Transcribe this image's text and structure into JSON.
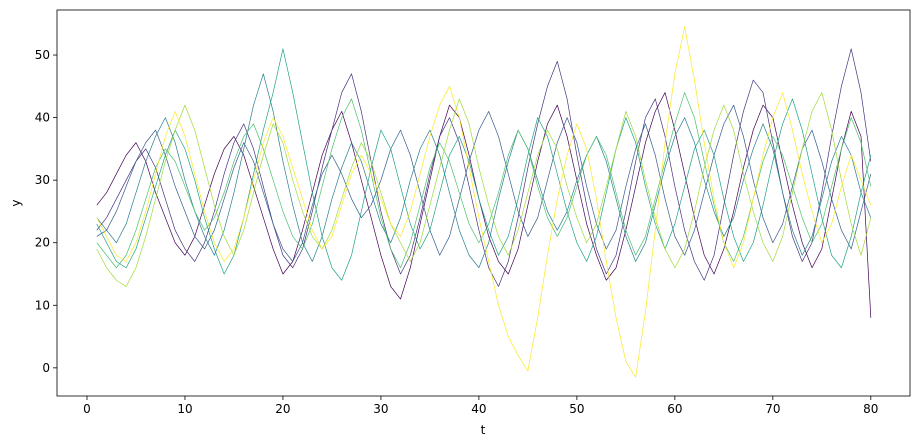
{
  "chart_data": {
    "type": "line",
    "xlabel": "t",
    "ylabel": "y",
    "x": [
      1,
      2,
      3,
      4,
      5,
      6,
      7,
      8,
      9,
      10,
      11,
      12,
      13,
      14,
      15,
      16,
      17,
      18,
      19,
      20,
      21,
      22,
      23,
      24,
      25,
      26,
      27,
      28,
      29,
      30,
      31,
      32,
      33,
      34,
      35,
      36,
      37,
      38,
      39,
      40,
      41,
      42,
      43,
      44,
      45,
      46,
      47,
      48,
      49,
      50,
      51,
      52,
      53,
      54,
      55,
      56,
      57,
      58,
      59,
      60,
      61,
      62,
      63,
      64,
      65,
      66,
      67,
      68,
      69,
      70,
      71,
      72,
      73,
      74,
      75,
      76,
      77,
      78,
      79,
      80
    ],
    "xlim": [
      -3.06,
      84
    ],
    "xticks": [
      0,
      10,
      20,
      30,
      40,
      50,
      60,
      70,
      80
    ],
    "ylim": [
      -4.5,
      57.2
    ],
    "yticks": [
      0,
      10,
      20,
      30,
      40,
      50
    ],
    "series": [
      {
        "color": "#440154",
        "values": [
          26,
          28,
          31,
          34,
          36,
          33,
          28,
          24,
          20,
          18,
          21,
          26,
          31,
          35,
          37,
          34,
          29,
          24,
          19,
          15,
          17,
          22,
          28,
          34,
          38,
          41,
          36,
          30,
          24,
          18,
          13,
          11,
          16,
          23,
          30,
          37,
          42,
          40,
          34,
          27,
          21,
          17,
          15,
          19,
          26,
          33,
          39,
          42,
          37,
          30,
          23,
          18,
          14,
          16,
          22,
          29,
          36,
          41,
          44,
          38,
          31,
          24,
          18,
          15,
          19,
          25,
          32,
          38,
          42,
          40,
          33,
          26,
          20,
          16,
          19,
          27,
          35,
          41,
          37,
          8
        ]
      },
      {
        "color": "#46327e",
        "values": [
          22,
          24,
          27,
          30,
          33,
          35,
          32,
          27,
          22,
          19,
          17,
          20,
          25,
          31,
          36,
          39,
          35,
          29,
          23,
          18,
          16,
          19,
          25,
          32,
          38,
          44,
          47,
          41,
          33,
          25,
          19,
          15,
          18,
          24,
          31,
          37,
          40,
          36,
          29,
          22,
          16,
          13,
          17,
          24,
          32,
          39,
          45,
          49,
          43,
          34,
          26,
          19,
          15,
          18,
          25,
          33,
          40,
          43,
          37,
          29,
          22,
          17,
          14,
          18,
          26,
          34,
          41,
          46,
          44,
          36,
          28,
          21,
          17,
          20,
          28,
          37,
          45,
          51,
          44,
          33
        ]
      },
      {
        "color": "#365c8d",
        "values": [
          21,
          22,
          25,
          29,
          33,
          36,
          38,
          34,
          29,
          25,
          21,
          19,
          22,
          27,
          32,
          36,
          33,
          28,
          23,
          19,
          17,
          20,
          26,
          31,
          34,
          31,
          27,
          24,
          26,
          30,
          35,
          38,
          34,
          28,
          22,
          18,
          21,
          27,
          33,
          38,
          41,
          37,
          31,
          25,
          21,
          24,
          30,
          36,
          40,
          36,
          29,
          23,
          19,
          22,
          29,
          35,
          39,
          34,
          27,
          21,
          18,
          22,
          28,
          34,
          39,
          42,
          37,
          30,
          24,
          20,
          23,
          29,
          35,
          38,
          33,
          27,
          22,
          19,
          25,
          31
        ]
      },
      {
        "color": "#277f8e",
        "values": [
          24,
          22,
          20,
          23,
          28,
          33,
          37,
          40,
          36,
          30,
          25,
          21,
          18,
          22,
          28,
          35,
          42,
          47,
          41,
          33,
          26,
          20,
          17,
          21,
          27,
          32,
          36,
          33,
          28,
          23,
          20,
          24,
          30,
          35,
          38,
          34,
          28,
          22,
          18,
          16,
          20,
          27,
          33,
          38,
          35,
          30,
          25,
          22,
          25,
          30,
          34,
          37,
          33,
          27,
          21,
          17,
          20,
          26,
          32,
          37,
          40,
          36,
          30,
          25,
          21,
          24,
          30,
          35,
          39,
          35,
          28,
          22,
          18,
          21,
          27,
          33,
          37,
          34,
          28,
          24
        ]
      },
      {
        "color": "#1fa187",
        "values": [
          23,
          20,
          17,
          16,
          19,
          24,
          29,
          34,
          38,
          35,
          30,
          24,
          19,
          15,
          18,
          24,
          31,
          38,
          44,
          51,
          44,
          36,
          28,
          21,
          16,
          14,
          18,
          25,
          32,
          38,
          35,
          29,
          23,
          19,
          22,
          28,
          34,
          37,
          33,
          27,
          22,
          18,
          21,
          27,
          34,
          40,
          37,
          31,
          25,
          20,
          17,
          21,
          28,
          35,
          40,
          36,
          29,
          23,
          19,
          23,
          29,
          35,
          38,
          34,
          27,
          21,
          17,
          20,
          26,
          33,
          39,
          43,
          38,
          31,
          24,
          18,
          16,
          21,
          28,
          34
        ]
      },
      {
        "color": "#4ac16d",
        "values": [
          20,
          18,
          16,
          18,
          22,
          27,
          32,
          35,
          33,
          29,
          25,
          22,
          24,
          28,
          33,
          37,
          39,
          35,
          30,
          25,
          21,
          19,
          23,
          29,
          35,
          40,
          43,
          38,
          31,
          24,
          19,
          16,
          20,
          26,
          32,
          36,
          33,
          28,
          23,
          20,
          23,
          28,
          34,
          38,
          35,
          29,
          24,
          21,
          24,
          29,
          34,
          37,
          34,
          28,
          22,
          18,
          21,
          27,
          33,
          39,
          44,
          40,
          33,
          26,
          20,
          17,
          21,
          27,
          33,
          37,
          34,
          29,
          24,
          20,
          23,
          29,
          35,
          40,
          36,
          29
        ]
      },
      {
        "color": "#a0da39",
        "values": [
          19,
          16,
          14,
          13,
          16,
          21,
          27,
          33,
          38,
          42,
          38,
          32,
          26,
          21,
          18,
          22,
          28,
          34,
          39,
          36,
          30,
          25,
          21,
          19,
          22,
          27,
          32,
          36,
          33,
          28,
          23,
          20,
          17,
          20,
          26,
          32,
          38,
          43,
          39,
          32,
          26,
          21,
          18,
          22,
          28,
          34,
          38,
          35,
          29,
          24,
          20,
          23,
          29,
          35,
          41,
          37,
          30,
          24,
          19,
          16,
          19,
          25,
          32,
          38,
          42,
          38,
          31,
          25,
          20,
          17,
          21,
          28,
          35,
          41,
          44,
          38,
          30,
          23,
          18,
          24
        ]
      },
      {
        "color": "#fde725",
        "values": [
          24,
          21,
          18,
          17,
          20,
          25,
          31,
          37,
          41,
          37,
          31,
          25,
          20,
          17,
          19,
          24,
          30,
          36,
          40,
          37,
          32,
          27,
          22,
          19,
          21,
          26,
          31,
          34,
          31,
          27,
          23,
          21,
          25,
          31,
          37,
          42,
          45,
          40,
          32,
          24,
          17,
          10,
          5,
          2,
          -0.5,
          8,
          18,
          27,
          34,
          39,
          35,
          27,
          17,
          8,
          1,
          -1.5,
          9,
          22,
          36,
          47,
          54.5,
          46,
          36,
          27,
          20,
          16,
          20,
          27,
          34,
          40,
          44,
          38,
          31,
          25,
          20,
          23,
          29,
          34,
          30,
          26
        ]
      }
    ]
  }
}
